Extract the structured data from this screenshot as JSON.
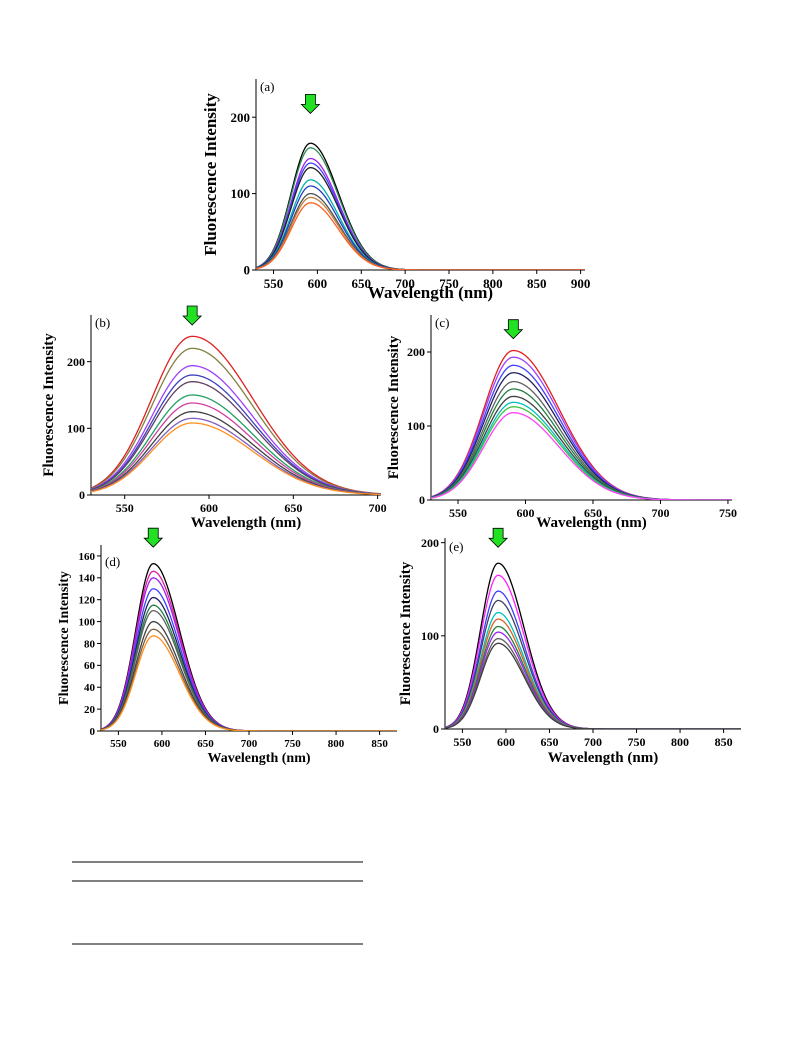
{
  "chart_data": [
    {
      "panel": "(a)",
      "type": "line",
      "xlabel": "Wavelength (nm)",
      "ylabel": "Fluorescence Intensity",
      "xlim": [
        530,
        905
      ],
      "ylim": [
        0,
        250
      ],
      "xticks": [
        550,
        600,
        650,
        700,
        750,
        800,
        850,
        900
      ],
      "yticks": [
        0,
        100,
        200
      ],
      "peak": 592,
      "sigma_left": 22,
      "sigma_right": 32,
      "arrow_x": 592,
      "arrow_y": 205,
      "series": [
        {
          "peak_value": 166,
          "color": "#000000"
        },
        {
          "peak_value": 160,
          "color": "#2e8b57"
        },
        {
          "peak_value": 146,
          "color": "#a020f0"
        },
        {
          "peak_value": 140,
          "color": "#4040ff"
        },
        {
          "peak_value": 134,
          "color": "#202020"
        },
        {
          "peak_value": 118,
          "color": "#00b0b0"
        },
        {
          "peak_value": 110,
          "color": "#2040c0"
        },
        {
          "peak_value": 100,
          "color": "#505050"
        },
        {
          "peak_value": 95,
          "color": "#c08040"
        },
        {
          "peak_value": 88,
          "color": "#ff6020"
        }
      ]
    },
    {
      "panel": "(b)",
      "type": "line",
      "xlabel": "Wavelength (nm)",
      "ylabel": "Fluorescence Intensity",
      "xlim": [
        530,
        702
      ],
      "ylim": [
        0,
        270
      ],
      "xticks": [
        550,
        600,
        650,
        700
      ],
      "yticks": [
        0,
        100,
        200
      ],
      "peak": 590,
      "sigma_left": 24,
      "sigma_right": 36,
      "arrow_x": 590,
      "arrow_y": 255,
      "series": [
        {
          "peak_value": 238,
          "color": "#e02020"
        },
        {
          "peak_value": 220,
          "color": "#808040"
        },
        {
          "peak_value": 194,
          "color": "#a040ff"
        },
        {
          "peak_value": 180,
          "color": "#4040c0"
        },
        {
          "peak_value": 170,
          "color": "#604060"
        },
        {
          "peak_value": 150,
          "color": "#20a060"
        },
        {
          "peak_value": 138,
          "color": "#d040a0"
        },
        {
          "peak_value": 125,
          "color": "#404040"
        },
        {
          "peak_value": 115,
          "color": "#8060c0"
        },
        {
          "peak_value": 108,
          "color": "#ff9020"
        }
      ]
    },
    {
      "panel": "(c)",
      "type": "line",
      "xlabel": "Wavelength (nm)",
      "ylabel": "Fluorescence Intensity",
      "xlim": [
        530,
        753
      ],
      "ylim": [
        0,
        250
      ],
      "xticks": [
        550,
        600,
        650,
        700,
        750
      ],
      "yticks": [
        0,
        100,
        200
      ],
      "peak": 591,
      "sigma_left": 22,
      "sigma_right": 34,
      "arrow_x": 591,
      "arrow_y": 218,
      "series": [
        {
          "peak_value": 202,
          "color": "#e02020"
        },
        {
          "peak_value": 193,
          "color": "#a040ff"
        },
        {
          "peak_value": 182,
          "color": "#4040ff"
        },
        {
          "peak_value": 172,
          "color": "#202060"
        },
        {
          "peak_value": 160,
          "color": "#606060"
        },
        {
          "peak_value": 150,
          "color": "#208040"
        },
        {
          "peak_value": 140,
          "color": "#404040"
        },
        {
          "peak_value": 132,
          "color": "#00c0c0"
        },
        {
          "peak_value": 126,
          "color": "#40c040"
        },
        {
          "peak_value": 118,
          "color": "#ff40ff"
        }
      ]
    },
    {
      "panel": "(d)",
      "type": "line",
      "xlabel": "Wavelength (nm)",
      "ylabel": "Fluorescence Intensity",
      "xlim": [
        530,
        870
      ],
      "ylim": [
        0,
        170
      ],
      "xticks": [
        550,
        600,
        650,
        700,
        750,
        800,
        850
      ],
      "yticks": [
        0,
        20,
        40,
        60,
        80,
        100,
        120,
        140,
        160
      ],
      "peak": 590,
      "sigma_left": 20,
      "sigma_right": 30,
      "arrow_x": 590,
      "arrow_y": 168,
      "series": [
        {
          "peak_value": 153,
          "color": "#000000"
        },
        {
          "peak_value": 146,
          "color": "#e020a0"
        },
        {
          "peak_value": 140,
          "color": "#a020f0"
        },
        {
          "peak_value": 130,
          "color": "#4040ff"
        },
        {
          "peak_value": 122,
          "color": "#202060"
        },
        {
          "peak_value": 115,
          "color": "#208040"
        },
        {
          "peak_value": 110,
          "color": "#606060"
        },
        {
          "peak_value": 100,
          "color": "#404040"
        },
        {
          "peak_value": 93,
          "color": "#806040"
        },
        {
          "peak_value": 87,
          "color": "#ff9020"
        }
      ]
    },
    {
      "panel": "(e)",
      "type": "line",
      "xlabel": "Wavelength (nm)",
      "ylabel": "Fluorescence Intensity",
      "xlim": [
        530,
        870
      ],
      "ylim": [
        0,
        205
      ],
      "xticks": [
        550,
        600,
        650,
        700,
        750,
        800,
        850
      ],
      "yticks": [
        0,
        100,
        200
      ],
      "peak": 591,
      "sigma_left": 20,
      "sigma_right": 30,
      "arrow_x": 591,
      "arrow_y": 195,
      "series": [
        {
          "peak_value": 178,
          "color": "#000000"
        },
        {
          "peak_value": 165,
          "color": "#ff20ff"
        },
        {
          "peak_value": 148,
          "color": "#4040ff"
        },
        {
          "peak_value": 138,
          "color": "#404060"
        },
        {
          "peak_value": 125,
          "color": "#00c0c0"
        },
        {
          "peak_value": 118,
          "color": "#e06020"
        },
        {
          "peak_value": 110,
          "color": "#208040"
        },
        {
          "peak_value": 104,
          "color": "#a020f0"
        },
        {
          "peak_value": 97,
          "color": "#606060"
        },
        {
          "peak_value": 92,
          "color": "#404040"
        }
      ]
    }
  ],
  "arrow_color": "#22e022"
}
